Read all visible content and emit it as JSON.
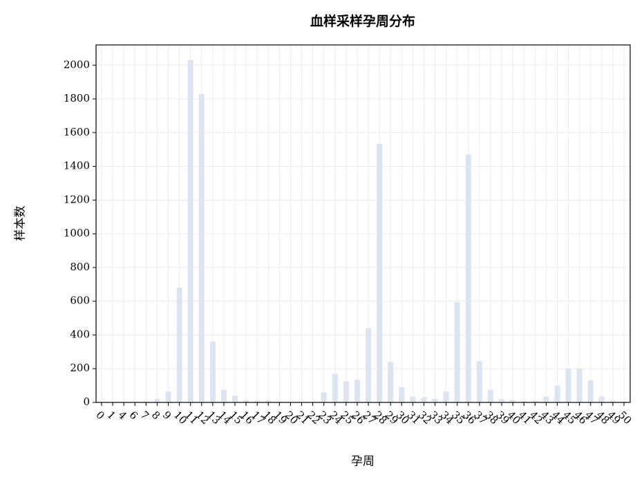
{
  "chart_data": {
    "type": "bar",
    "title": "血样采样孕周分布",
    "xlabel": "孕周",
    "ylabel": "样本数",
    "categories": [
      "0",
      "1",
      "4",
      "6",
      "7",
      "8",
      "9",
      "10",
      "11",
      "12",
      "13",
      "14",
      "15",
      "16",
      "17",
      "18",
      "19",
      "20",
      "21",
      "22",
      "23",
      "24",
      "25",
      "26",
      "27",
      "28",
      "29",
      "30",
      "31",
      "32",
      "33",
      "34",
      "35",
      "36",
      "37",
      "38",
      "39",
      "40",
      "41",
      "42",
      "43",
      "44",
      "45",
      "46",
      "47",
      "48",
      "49",
      "50"
    ],
    "values": [
      2,
      2,
      2,
      3,
      5,
      20,
      65,
      680,
      2030,
      1830,
      360,
      75,
      40,
      12,
      10,
      12,
      5,
      3,
      2,
      2,
      60,
      170,
      125,
      135,
      440,
      1535,
      240,
      90,
      35,
      30,
      20,
      65,
      595,
      1470,
      245,
      75,
      20,
      15,
      8,
      8,
      35,
      100,
      200,
      200,
      130,
      35,
      10,
      5
    ],
    "color": "#dae5f0",
    "ylim": [
      0,
      2120
    ],
    "yticks": [
      0,
      200,
      400,
      600,
      800,
      1000,
      1200,
      1400,
      1600,
      1800,
      2000
    ],
    "grid": true
  }
}
